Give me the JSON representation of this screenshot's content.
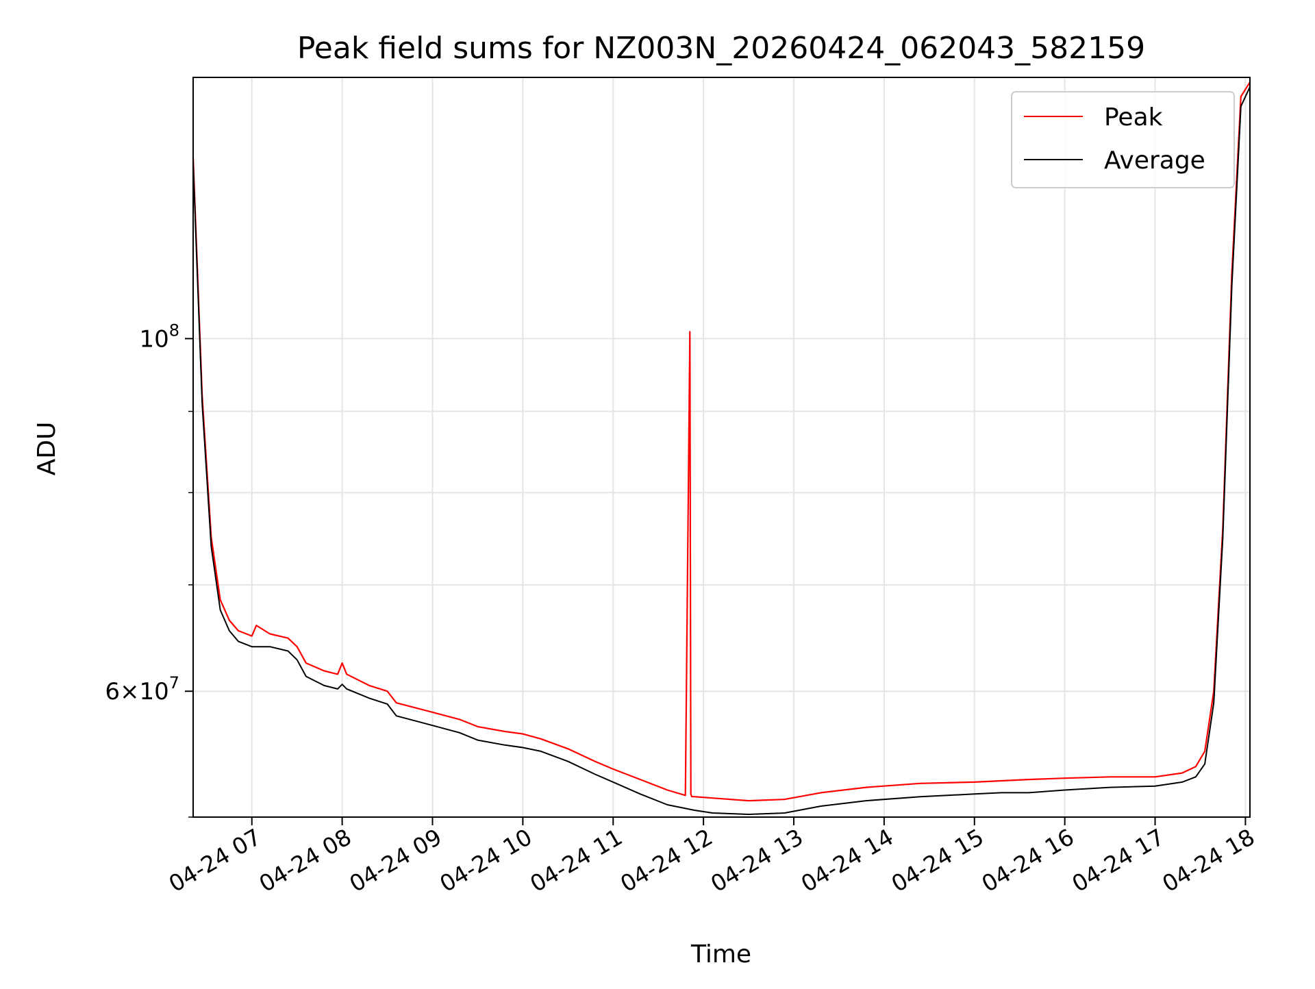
{
  "chart_data": {
    "type": "line",
    "title": "Peak field sums for NZ003N_20260424_062043_582159",
    "xlabel": "Time",
    "ylabel": "ADU",
    "yscale": "log",
    "ylim": [
      50000000,
      146000000
    ],
    "xlim_hours": [
      6.35,
      18.05
    ],
    "grid": true,
    "legend_position": "top-right",
    "x_ticks": [
      {
        "hour": 7,
        "label": "04-24 07"
      },
      {
        "hour": 8,
        "label": "04-24 08"
      },
      {
        "hour": 9,
        "label": "04-24 09"
      },
      {
        "hour": 10,
        "label": "04-24 10"
      },
      {
        "hour": 11,
        "label": "04-24 11"
      },
      {
        "hour": 12,
        "label": "04-24 12"
      },
      {
        "hour": 13,
        "label": "04-24 13"
      },
      {
        "hour": 14,
        "label": "04-24 14"
      },
      {
        "hour": 15,
        "label": "04-24 15"
      },
      {
        "hour": 16,
        "label": "04-24 16"
      },
      {
        "hour": 17,
        "label": "04-24 17"
      },
      {
        "hour": 18,
        "label": "04-24 18"
      }
    ],
    "y_ticks_major": [
      {
        "value": 100000000,
        "base": "10",
        "exp": "8",
        "mantissa": ""
      },
      {
        "value": 60000000,
        "base": "10",
        "exp": "7",
        "mantissa": "6"
      }
    ],
    "y_ticks_minor": [
      50000000,
      70000000,
      80000000,
      90000000
    ],
    "series": [
      {
        "name": "Peak",
        "color": "#ff0000",
        "hours": [
          6.35,
          6.45,
          6.55,
          6.65,
          6.75,
          6.85,
          7.0,
          7.05,
          7.2,
          7.4,
          7.5,
          7.6,
          7.8,
          7.95,
          8.0,
          8.05,
          8.3,
          8.5,
          8.6,
          9.0,
          9.3,
          9.5,
          9.8,
          10.0,
          10.2,
          10.5,
          10.8,
          11.0,
          11.3,
          11.6,
          11.8,
          11.85,
          11.86,
          11.87,
          11.9,
          12.1,
          12.5,
          12.9,
          13.3,
          13.8,
          14.4,
          15.0,
          15.3,
          15.6,
          16.0,
          16.5,
          17.0,
          17.3,
          17.45,
          17.55,
          17.65,
          17.75,
          17.85,
          17.95,
          18.05
        ],
        "values": [
          130000000,
          92000000,
          75000000,
          68500000,
          66500000,
          65500000,
          65000000,
          66000000,
          65200000,
          64800000,
          64000000,
          62500000,
          61800000,
          61500000,
          62500000,
          61500000,
          60500000,
          60000000,
          59000000,
          58200000,
          57600000,
          57000000,
          56600000,
          56400000,
          56000000,
          55200000,
          54200000,
          53600000,
          52800000,
          52000000,
          51600000,
          101000000,
          51700000,
          51500000,
          51500000,
          51400000,
          51200000,
          51300000,
          51800000,
          52200000,
          52500000,
          52600000,
          52700000,
          52800000,
          52900000,
          53000000,
          53000000,
          53300000,
          53800000,
          55000000,
          60000000,
          76000000,
          110000000,
          142000000,
          145000000
        ]
      },
      {
        "name": "Average",
        "color": "#000000",
        "hours": [
          6.35,
          6.45,
          6.55,
          6.65,
          6.75,
          6.85,
          7.0,
          7.2,
          7.4,
          7.5,
          7.6,
          7.8,
          7.95,
          8.0,
          8.05,
          8.3,
          8.5,
          8.6,
          9.0,
          9.3,
          9.5,
          9.8,
          10.0,
          10.2,
          10.5,
          10.8,
          11.0,
          11.3,
          11.6,
          11.9,
          12.1,
          12.5,
          12.9,
          13.3,
          13.8,
          14.4,
          15.0,
          15.3,
          15.6,
          16.0,
          16.5,
          17.0,
          17.3,
          17.45,
          17.55,
          17.65,
          17.75,
          17.85,
          17.95,
          18.05
        ],
        "values": [
          129000000,
          91000000,
          74000000,
          67500000,
          65500000,
          64500000,
          64000000,
          64000000,
          63600000,
          62800000,
          61300000,
          60500000,
          60200000,
          60600000,
          60200000,
          59400000,
          58900000,
          57900000,
          57100000,
          56500000,
          55900000,
          55500000,
          55300000,
          55000000,
          54200000,
          53200000,
          52600000,
          51700000,
          50900000,
          50500000,
          50300000,
          50200000,
          50300000,
          50800000,
          51200000,
          51500000,
          51700000,
          51800000,
          51800000,
          52000000,
          52200000,
          52300000,
          52600000,
          53000000,
          54000000,
          59000000,
          75000000,
          108000000,
          140000000,
          144000000
        ]
      }
    ]
  }
}
